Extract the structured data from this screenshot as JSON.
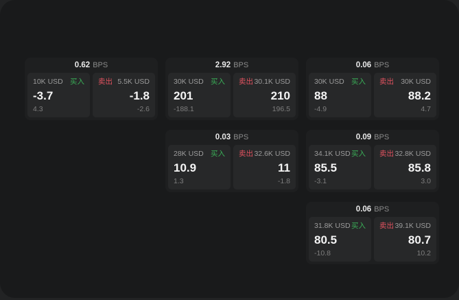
{
  "labels": {
    "bps_unit": "BPS",
    "buy": "买入",
    "sell": "卖出"
  },
  "colors": {
    "buy_green": "#3aae57",
    "sell_red": "#e0525f",
    "board_bg": "#191a1b",
    "card_bg": "#1e1f20",
    "tile_bg": "#272829"
  },
  "cards": [
    {
      "col": 1,
      "row": 1,
      "bps": "0.62",
      "buy": {
        "amount": "10K USD",
        "value": "-3.7",
        "delta": "4.3"
      },
      "sell": {
        "amount": "5.5K USD",
        "value": "-1.8",
        "delta": "-2.6"
      }
    },
    {
      "col": 2,
      "row": 1,
      "bps": "2.92",
      "buy": {
        "amount": "30K USD",
        "value": "201",
        "delta": "-188.1"
      },
      "sell": {
        "amount": "30.1K USD",
        "value": "210",
        "delta": "196.5"
      }
    },
    {
      "col": 3,
      "row": 1,
      "bps": "0.06",
      "buy": {
        "amount": "30K USD",
        "value": "88",
        "delta": "-4.9"
      },
      "sell": {
        "amount": "30K USD",
        "value": "88.2",
        "delta": "4.7"
      }
    },
    {
      "col": 2,
      "row": 2,
      "bps": "0.03",
      "buy": {
        "amount": "28K USD",
        "value": "10.9",
        "delta": "1.3"
      },
      "sell": {
        "amount": "32.6K USD",
        "value": "11",
        "delta": "-1.8"
      }
    },
    {
      "col": 3,
      "row": 2,
      "bps": "0.09",
      "buy": {
        "amount": "34.1K USD",
        "value": "85.5",
        "delta": "-3.1"
      },
      "sell": {
        "amount": "32.8K USD",
        "value": "85.8",
        "delta": "3.0"
      }
    },
    {
      "col": 3,
      "row": 3,
      "bps": "0.06",
      "buy": {
        "amount": "31.8K USD",
        "value": "80.5",
        "delta": "-10.8"
      },
      "sell": {
        "amount": "39.1K USD",
        "value": "80.7",
        "delta": "10.2"
      }
    }
  ]
}
